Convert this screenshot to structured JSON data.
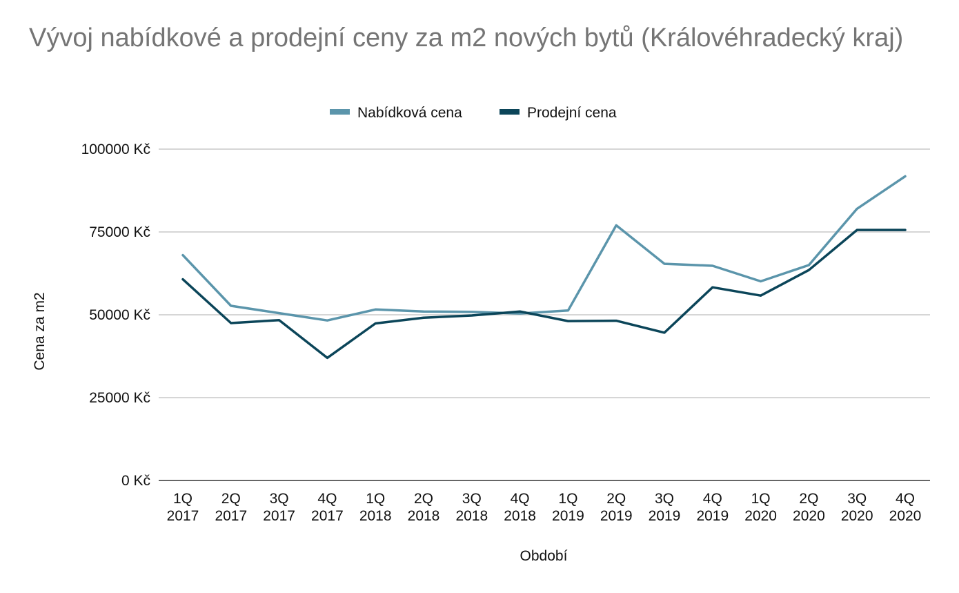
{
  "chart_data": {
    "type": "line",
    "title": "Vývoj nabídkové a prodejní ceny za m2 nových bytů (Královéhradecký kraj)",
    "xlabel": "Období",
    "ylabel": "Cena za m2",
    "ylim": [
      0,
      100000
    ],
    "yticks": [
      "0 Kč",
      "25000 Kč",
      "50000 Kč",
      "75000 Kč",
      "100000 Kč"
    ],
    "ytick_values": [
      0,
      25000,
      50000,
      75000,
      100000
    ],
    "grid": true,
    "legend_position": "top-center",
    "categories": [
      [
        "1Q",
        "2017"
      ],
      [
        "2Q",
        "2017"
      ],
      [
        "3Q",
        "2017"
      ],
      [
        "4Q",
        "2017"
      ],
      [
        "1Q",
        "2018"
      ],
      [
        "2Q",
        "2018"
      ],
      [
        "3Q",
        "2018"
      ],
      [
        "4Q",
        "2018"
      ],
      [
        "1Q",
        "2019"
      ],
      [
        "2Q",
        "2019"
      ],
      [
        "3Q",
        "2019"
      ],
      [
        "4Q",
        "2019"
      ],
      [
        "1Q",
        "2020"
      ],
      [
        "2Q",
        "2020"
      ],
      [
        "3Q",
        "2020"
      ],
      [
        "4Q",
        "2020"
      ]
    ],
    "series": [
      {
        "name": "Nabídková cena",
        "color": "#5b95ab",
        "values": [
          68000,
          52700,
          50500,
          48300,
          51600,
          51000,
          50900,
          50400,
          51300,
          77000,
          65400,
          64800,
          60100,
          65000,
          82000,
          91800
        ]
      },
      {
        "name": "Prodejní cena",
        "color": "#0b4559",
        "values": [
          60700,
          47500,
          48400,
          37000,
          47400,
          49100,
          49800,
          51000,
          48100,
          48200,
          44600,
          58300,
          55800,
          63500,
          75600,
          75600
        ]
      }
    ]
  }
}
